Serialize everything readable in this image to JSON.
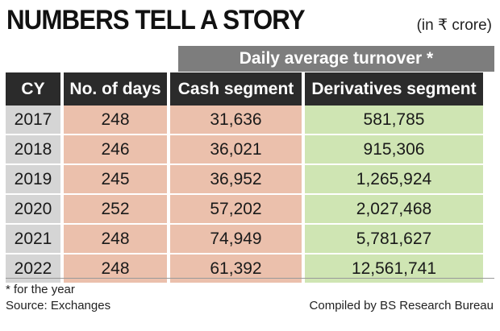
{
  "title": "NUMBERS TELL A STORY",
  "unit": "(in ₹ crore)",
  "group_header": "Daily average turnover *",
  "columns": {
    "cy": "CY",
    "days": "No. of days",
    "cash": "Cash segment",
    "derivatives": "Derivatives segment"
  },
  "rows": [
    {
      "cy": "2017",
      "days": "248",
      "cash": "31,636",
      "derivatives": "581,785"
    },
    {
      "cy": "2018",
      "days": "246",
      "cash": "36,021",
      "derivatives": "915,306"
    },
    {
      "cy": "2019",
      "days": "245",
      "cash": "36,952",
      "derivatives": "1,265,924"
    },
    {
      "cy": "2020",
      "days": "252",
      "cash": "57,202",
      "derivatives": "2,027,468"
    },
    {
      "cy": "2021",
      "days": "248",
      "cash": "74,949",
      "derivatives": "5,781,627"
    },
    {
      "cy": "2022",
      "days": "248",
      "cash": "61,392",
      "derivatives": "12,561,741"
    }
  ],
  "footnote": "* for the year",
  "source": "Source: Exchanges",
  "compiled": "Compiled by BS Research Bureau",
  "colors": {
    "header_bg": "#2b2b2b",
    "group_header_bg": "#7d7d7d",
    "year_cell": "#d5d5d5",
    "salmon_cell": "#ebc0ac",
    "green_cell": "#cfe5b3"
  }
}
